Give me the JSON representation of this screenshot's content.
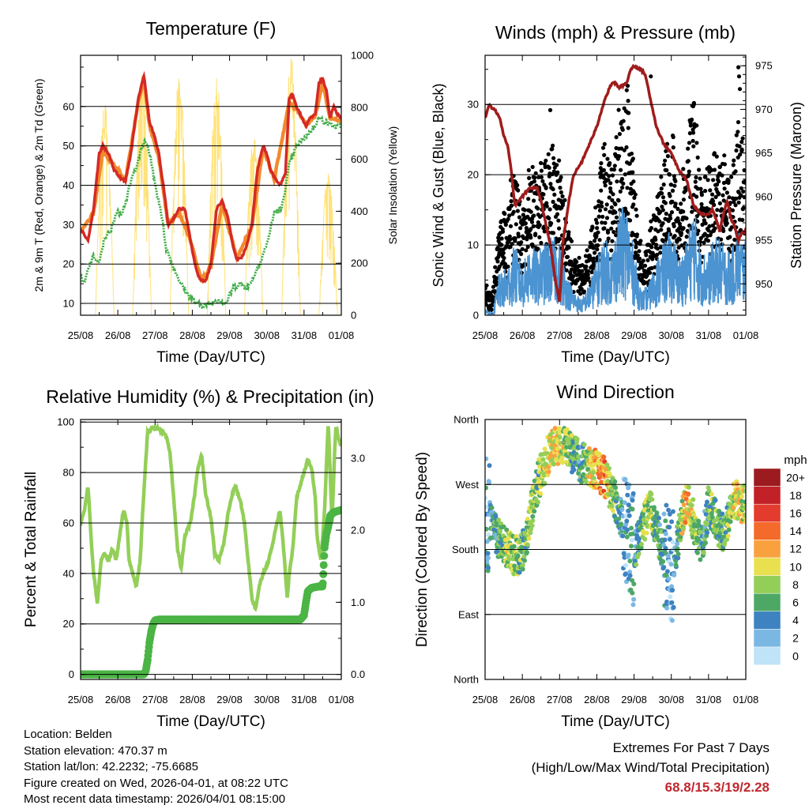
{
  "chart_data": [
    {
      "id": "temperature",
      "type": "line",
      "title": "Temperature (F)",
      "xlabel": "Time (Day/UTC)",
      "ylabel": "2m & 9m T (Red, Orange) & 2m Td (Green)",
      "y2label": "Solar Insolation (Yellow)",
      "x_tick_labels": [
        "25/08",
        "26/08",
        "27/08",
        "28/08",
        "29/08",
        "30/08",
        "31/08",
        "01/08"
      ],
      "xlim": [
        0,
        7
      ],
      "ylim": [
        7,
        73
      ],
      "yticks": [
        10,
        20,
        30,
        40,
        50,
        60
      ],
      "y2lim": [
        0,
        1000
      ],
      "y2ticks": [
        0,
        200,
        400,
        600,
        800,
        1000
      ],
      "series": [
        {
          "name": "2m T",
          "color": "#d42a25",
          "x": [
            0,
            0.2,
            0.35,
            0.5,
            0.6,
            0.75,
            0.9,
            1.05,
            1.2,
            1.35,
            1.55,
            1.7,
            1.85,
            2.0,
            2.1,
            2.25,
            2.35,
            2.45,
            2.65,
            2.8,
            2.95,
            3.05,
            3.15,
            3.25,
            3.35,
            3.5,
            3.65,
            3.8,
            3.95,
            4.1,
            4.2,
            4.35,
            4.5,
            4.6,
            4.75,
            4.9,
            5.0,
            5.1,
            5.2,
            5.35,
            5.5,
            5.6,
            5.7,
            5.8,
            5.95,
            6.05,
            6.15,
            6.3,
            6.4,
            6.5,
            6.6,
            6.7,
            6.8,
            6.9,
            7.0
          ],
          "values": [
            29,
            26,
            34,
            48,
            50,
            48,
            44,
            42,
            41,
            48,
            62,
            68,
            56,
            52,
            48,
            38,
            30,
            31,
            34,
            34,
            26,
            21,
            17,
            16,
            15.5,
            20,
            34,
            36,
            32,
            24,
            21,
            22,
            26,
            30,
            44,
            50,
            48,
            44,
            42,
            40,
            43,
            62,
            63,
            60,
            57,
            55,
            57,
            58,
            66,
            67,
            64,
            57,
            60,
            58,
            57
          ]
        },
        {
          "name": "9m T",
          "color": "#f28a2e",
          "x": [
            0,
            0.35,
            0.6,
            0.9,
            1.2,
            1.55,
            1.7,
            1.85,
            2.1,
            2.35,
            2.65,
            2.95,
            3.25,
            3.5,
            3.8,
            4.2,
            4.6,
            4.9,
            5.2,
            5.6,
            5.8,
            6.05,
            6.3,
            6.5,
            6.7,
            7.0
          ],
          "values": [
            28,
            33,
            49,
            45,
            41,
            61,
            67,
            55,
            47,
            30,
            33,
            26,
            15.8,
            19.5,
            35,
            21.5,
            29.5,
            49.5,
            41.5,
            61,
            59.5,
            55.5,
            57.5,
            66,
            57,
            56.5
          ]
        },
        {
          "name": "2m Td",
          "color": "#41ad49",
          "x": [
            0,
            0.1,
            0.25,
            0.35,
            0.5,
            0.65,
            0.8,
            0.95,
            1.1,
            1.25,
            1.35,
            1.5,
            1.6,
            1.7,
            1.8,
            1.9,
            2.0,
            2.15,
            2.3,
            2.5,
            2.7,
            2.9,
            3.1,
            3.3,
            3.5,
            3.7,
            3.9,
            4.1,
            4.3,
            4.5,
            4.6,
            4.8,
            5.0,
            5.2,
            5.4,
            5.6,
            5.8,
            6.0,
            6.2,
            6.4,
            6.6,
            6.8,
            7.0
          ],
          "values": [
            17,
            15,
            20,
            22,
            20,
            27,
            28,
            33,
            33,
            37,
            41,
            45,
            48,
            51,
            50,
            46,
            40,
            34,
            24,
            19,
            15,
            12,
            10,
            9.5,
            10,
            11,
            10,
            14,
            15,
            14,
            16,
            20,
            25,
            33,
            34,
            45,
            50,
            52,
            54,
            57,
            56,
            55,
            55
          ]
        }
      ],
      "insolation": {
        "name": "Solar Insolation",
        "color": "#ffe27a",
        "day_starts": [
          0.4,
          1.4,
          2.4,
          3.4,
          4.4,
          5.4,
          6.4
        ],
        "day_ends": [
          0.9,
          1.9,
          2.9,
          3.9,
          4.9,
          5.9,
          6.9
        ],
        "peaks": [
          830,
          950,
          940,
          920,
          700,
          1000,
          560
        ]
      }
    },
    {
      "id": "winds",
      "type": "scatter",
      "title": "Winds (mph) & Pressure (mb)",
      "xlabel": "Time (Day/UTC)",
      "ylabel": "Sonic Wind & Gust (Blue, Black)",
      "y2label": "Station Pressure (Maroon)",
      "x_tick_labels": [
        "25/08",
        "26/08",
        "27/08",
        "28/08",
        "29/08",
        "30/08",
        "31/08",
        "01/08"
      ],
      "xlim": [
        0,
        7
      ],
      "ylim": [
        0,
        37
      ],
      "yticks": [
        0,
        10,
        20,
        30
      ],
      "y2lim": [
        946.4,
        976.2
      ],
      "y2ticks": [
        950,
        955,
        960,
        965,
        970,
        975
      ],
      "wind_color": "#4b93d1",
      "gust_color": "#000000",
      "wind_envelope": [
        [
          0,
          1
        ],
        [
          0.2,
          0
        ],
        [
          0.35,
          5
        ],
        [
          0.6,
          6
        ],
        [
          0.8,
          9
        ],
        [
          1.0,
          6
        ],
        [
          1.2,
          9
        ],
        [
          1.4,
          8
        ],
        [
          1.6,
          9
        ],
        [
          1.8,
          10
        ],
        [
          2.0,
          9
        ],
        [
          2.2,
          5
        ],
        [
          2.4,
          3
        ],
        [
          2.6,
          2
        ],
        [
          2.8,
          4
        ],
        [
          3.0,
          7
        ],
        [
          3.2,
          10
        ],
        [
          3.4,
          8
        ],
        [
          3.6,
          13
        ],
        [
          3.8,
          14
        ],
        [
          4.0,
          8
        ],
        [
          4.2,
          3
        ],
        [
          4.4,
          4
        ],
        [
          4.6,
          7
        ],
        [
          4.8,
          9
        ],
        [
          5.0,
          11
        ],
        [
          5.2,
          7
        ],
        [
          5.4,
          9
        ],
        [
          5.6,
          14
        ],
        [
          5.8,
          8
        ],
        [
          6.0,
          8
        ],
        [
          6.2,
          10
        ],
        [
          6.4,
          9
        ],
        [
          6.6,
          8
        ],
        [
          6.8,
          11
        ],
        [
          7.0,
          9
        ]
      ],
      "gust_outliers": [
        [
          1.75,
          29.2
        ],
        [
          4.45,
          34
        ],
        [
          6.8,
          35.3
        ],
        [
          6.82,
          34
        ],
        [
          6.84,
          32.2
        ]
      ],
      "pressure": {
        "name": "Station Pressure",
        "color": "#a01c1c",
        "x": [
          0,
          0.1,
          0.25,
          0.4,
          0.5,
          0.6,
          0.7,
          0.8,
          1.0,
          1.2,
          1.4,
          1.5,
          1.6,
          1.75,
          1.9,
          2.0,
          2.1,
          2.25,
          2.35,
          2.45,
          2.6,
          2.8,
          3.0,
          3.2,
          3.3,
          3.4,
          3.5,
          3.6,
          3.8,
          3.9,
          4.0,
          4.2,
          4.3,
          4.4,
          4.5,
          4.6,
          4.8,
          5.0,
          5.1,
          5.2,
          5.4,
          5.5,
          5.6,
          5.8,
          6.0,
          6.1,
          6.2,
          6.3,
          6.4,
          6.5,
          6.6,
          6.7,
          6.8,
          6.9,
          7.0
        ],
        "values": [
          969,
          970.5,
          970,
          969,
          967,
          966,
          963,
          959,
          960,
          961,
          961,
          959.5,
          957.5,
          954.5,
          950,
          948,
          955,
          959.5,
          962,
          963,
          964,
          966,
          968,
          971,
          972,
          973,
          973,
          972.5,
          973,
          974.5,
          975,
          974.5,
          974,
          972,
          970,
          968,
          966,
          965,
          964,
          963,
          962,
          960.5,
          959,
          958,
          958,
          958.5,
          957.5,
          956,
          958,
          959.5,
          957.5,
          956.5,
          955,
          956,
          956
        ]
      }
    },
    {
      "id": "humidity",
      "type": "line",
      "title": "Relative Humidity (%) & Precipitation (in)",
      "xlabel": "Time (Day/UTC)",
      "ylabel": "Percent & Total Rainfall",
      "x_tick_labels": [
        "25/08",
        "26/08",
        "27/08",
        "28/08",
        "29/08",
        "30/08",
        "31/08",
        "01/08"
      ],
      "xlim": [
        0,
        7
      ],
      "ylim": [
        -2,
        101
      ],
      "yticks": [
        0,
        20,
        40,
        60,
        80,
        100
      ],
      "y2lim": [
        -0.07,
        3.535
      ],
      "y2ticks": [
        0.0,
        1.0,
        2.0,
        3.0
      ],
      "y2tick_labels": [
        "0.0",
        "1.0",
        "2.0",
        "3.0"
      ],
      "series": [
        {
          "name": "Relative Humidity",
          "color": "#93cf58",
          "x": [
            0,
            0.1,
            0.2,
            0.3,
            0.35,
            0.45,
            0.55,
            0.65,
            0.75,
            0.85,
            0.95,
            1.05,
            1.15,
            1.25,
            1.3,
            1.4,
            1.5,
            1.6,
            1.65,
            1.8,
            1.95,
            2.1,
            2.2,
            2.3,
            2.4,
            2.5,
            2.6,
            2.7,
            2.8,
            2.95,
            3.05,
            3.15,
            3.25,
            3.35,
            3.5,
            3.6,
            3.7,
            3.85,
            3.95,
            4.05,
            4.15,
            4.3,
            4.4,
            4.5,
            4.6,
            4.7,
            4.8,
            4.9,
            5.05,
            5.2,
            5.35,
            5.45,
            5.55,
            5.6,
            5.7,
            5.8,
            5.9,
            6.0,
            6.1,
            6.2,
            6.3,
            6.35,
            6.45,
            6.55,
            6.65,
            6.75,
            6.85,
            7.0
          ],
          "values": [
            60,
            65,
            75,
            50,
            40,
            28,
            45,
            48,
            45,
            50,
            45,
            55,
            65,
            60,
            45,
            40,
            35,
            45,
            60,
            96,
            98,
            97,
            96,
            94,
            88,
            70,
            50,
            42,
            55,
            60,
            70,
            82,
            87,
            72,
            62,
            48,
            45,
            52,
            63,
            70,
            75,
            68,
            60,
            45,
            30,
            26,
            35,
            40,
            45,
            55,
            65,
            50,
            30,
            40,
            50,
            70,
            75,
            80,
            85,
            82,
            70,
            55,
            45,
            65,
            100,
            60,
            98,
            90
          ]
        },
        {
          "name": "Total Rainfall",
          "color": "#4bb445",
          "x": [
            0,
            1.7,
            1.75,
            1.8,
            1.85,
            1.9,
            1.95,
            2.0,
            2.1,
            2.4,
            2.6,
            3.0,
            4.0,
            5.0,
            5.9,
            6.0,
            6.05,
            6.1,
            6.2,
            6.4,
            6.5,
            6.55,
            6.6,
            6.65,
            6.7,
            6.8,
            7.0
          ],
          "values": [
            0,
            0,
            0.05,
            0.2,
            0.45,
            0.6,
            0.7,
            0.75,
            0.76,
            0.76,
            0.76,
            0.76,
            0.76,
            0.76,
            0.76,
            0.82,
            1.0,
            1.15,
            1.2,
            1.22,
            1.22,
            1.75,
            1.95,
            2.05,
            2.2,
            2.25,
            2.28
          ]
        }
      ]
    },
    {
      "id": "direction",
      "type": "scatter",
      "title": "Wind Direction",
      "xlabel": "Time (Day/UTC)",
      "ylabel": "Direction (Colored By Speed)",
      "x_tick_labels": [
        "25/08",
        "26/08",
        "27/08",
        "28/08",
        "29/08",
        "30/08",
        "31/08",
        "01/08"
      ],
      "xlim": [
        0,
        7
      ],
      "ylim": [
        0,
        360
      ],
      "y_tick_values": [
        0,
        90,
        180,
        270,
        360
      ],
      "y_tick_labels": [
        "North",
        "East",
        "South",
        "West",
        "North"
      ],
      "colorbar": {
        "title": "mph",
        "labels": [
          "20+",
          "18",
          "16",
          "14",
          "12",
          "10",
          "8",
          "6",
          "4",
          "2",
          "0"
        ],
        "colors": [
          "#9c1b1f",
          "#c12127",
          "#e33b2e",
          "#f36a2a",
          "#f9a13f",
          "#e8e04f",
          "#93cf58",
          "#4ea865",
          "#3e82c1",
          "#7ab8e3",
          "#bfe3f7"
        ]
      },
      "direction_trend": [
        [
          0,
          230
        ],
        [
          0.3,
          200
        ],
        [
          0.6,
          180
        ],
        [
          0.8,
          170
        ],
        [
          1.0,
          175
        ],
        [
          1.2,
          220
        ],
        [
          1.4,
          270
        ],
        [
          1.6,
          300
        ],
        [
          1.8,
          320
        ],
        [
          2.0,
          325
        ],
        [
          2.2,
          320
        ],
        [
          2.4,
          310
        ],
        [
          2.6,
          300
        ],
        [
          2.8,
          295
        ],
        [
          3.0,
          290
        ],
        [
          3.2,
          280
        ],
        [
          3.4,
          260
        ],
        [
          3.6,
          230
        ],
        [
          3.8,
          200
        ],
        [
          4.0,
          180
        ],
        [
          4.2,
          200
        ],
        [
          4.4,
          240
        ],
        [
          4.6,
          210
        ],
        [
          4.8,
          170
        ],
        [
          5.0,
          150
        ],
        [
          5.2,
          200
        ],
        [
          5.4,
          250
        ],
        [
          5.6,
          220
        ],
        [
          5.8,
          180
        ],
        [
          6.0,
          240
        ],
        [
          6.2,
          220
        ],
        [
          6.4,
          200
        ],
        [
          6.6,
          240
        ],
        [
          6.8,
          250
        ],
        [
          7.0,
          240
        ]
      ],
      "speed_trend": [
        [
          0,
          3
        ],
        [
          0.4,
          6
        ],
        [
          0.6,
          9
        ],
        [
          0.8,
          8
        ],
        [
          1.0,
          6
        ],
        [
          1.2,
          8
        ],
        [
          1.4,
          7
        ],
        [
          1.6,
          9
        ],
        [
          1.8,
          10
        ],
        [
          2.0,
          10
        ],
        [
          2.2,
          8
        ],
        [
          2.4,
          6
        ],
        [
          2.6,
          5
        ],
        [
          2.8,
          10
        ],
        [
          3.0,
          12
        ],
        [
          3.2,
          13
        ],
        [
          3.4,
          8
        ],
        [
          3.6,
          5
        ],
        [
          3.8,
          3
        ],
        [
          4.0,
          4
        ],
        [
          4.2,
          7
        ],
        [
          4.4,
          9
        ],
        [
          4.6,
          6
        ],
        [
          4.8,
          4
        ],
        [
          5.0,
          3
        ],
        [
          5.2,
          6
        ],
        [
          5.4,
          12
        ],
        [
          5.6,
          8
        ],
        [
          5.8,
          5
        ],
        [
          6.0,
          6
        ],
        [
          6.2,
          7
        ],
        [
          6.4,
          6
        ],
        [
          6.6,
          8
        ],
        [
          6.8,
          10
        ],
        [
          7.0,
          8
        ]
      ]
    }
  ],
  "info": {
    "location": "Location: Belden",
    "elevation": "Station elevation: 470.37 m",
    "latlon": "Station lat/lon: 42.2232; -75.6685",
    "created": "Figure created on Wed, 2026-04-01, at 08:22 UTC",
    "recent": "Most recent data timestamp: 2026/04/01 08:15:00"
  },
  "extremes": {
    "title": "Extremes For Past 7 Days",
    "subtitle": "(High/Low/Max Wind/Total Precipitation)",
    "values": "68.8/15.3/19/2.28"
  }
}
